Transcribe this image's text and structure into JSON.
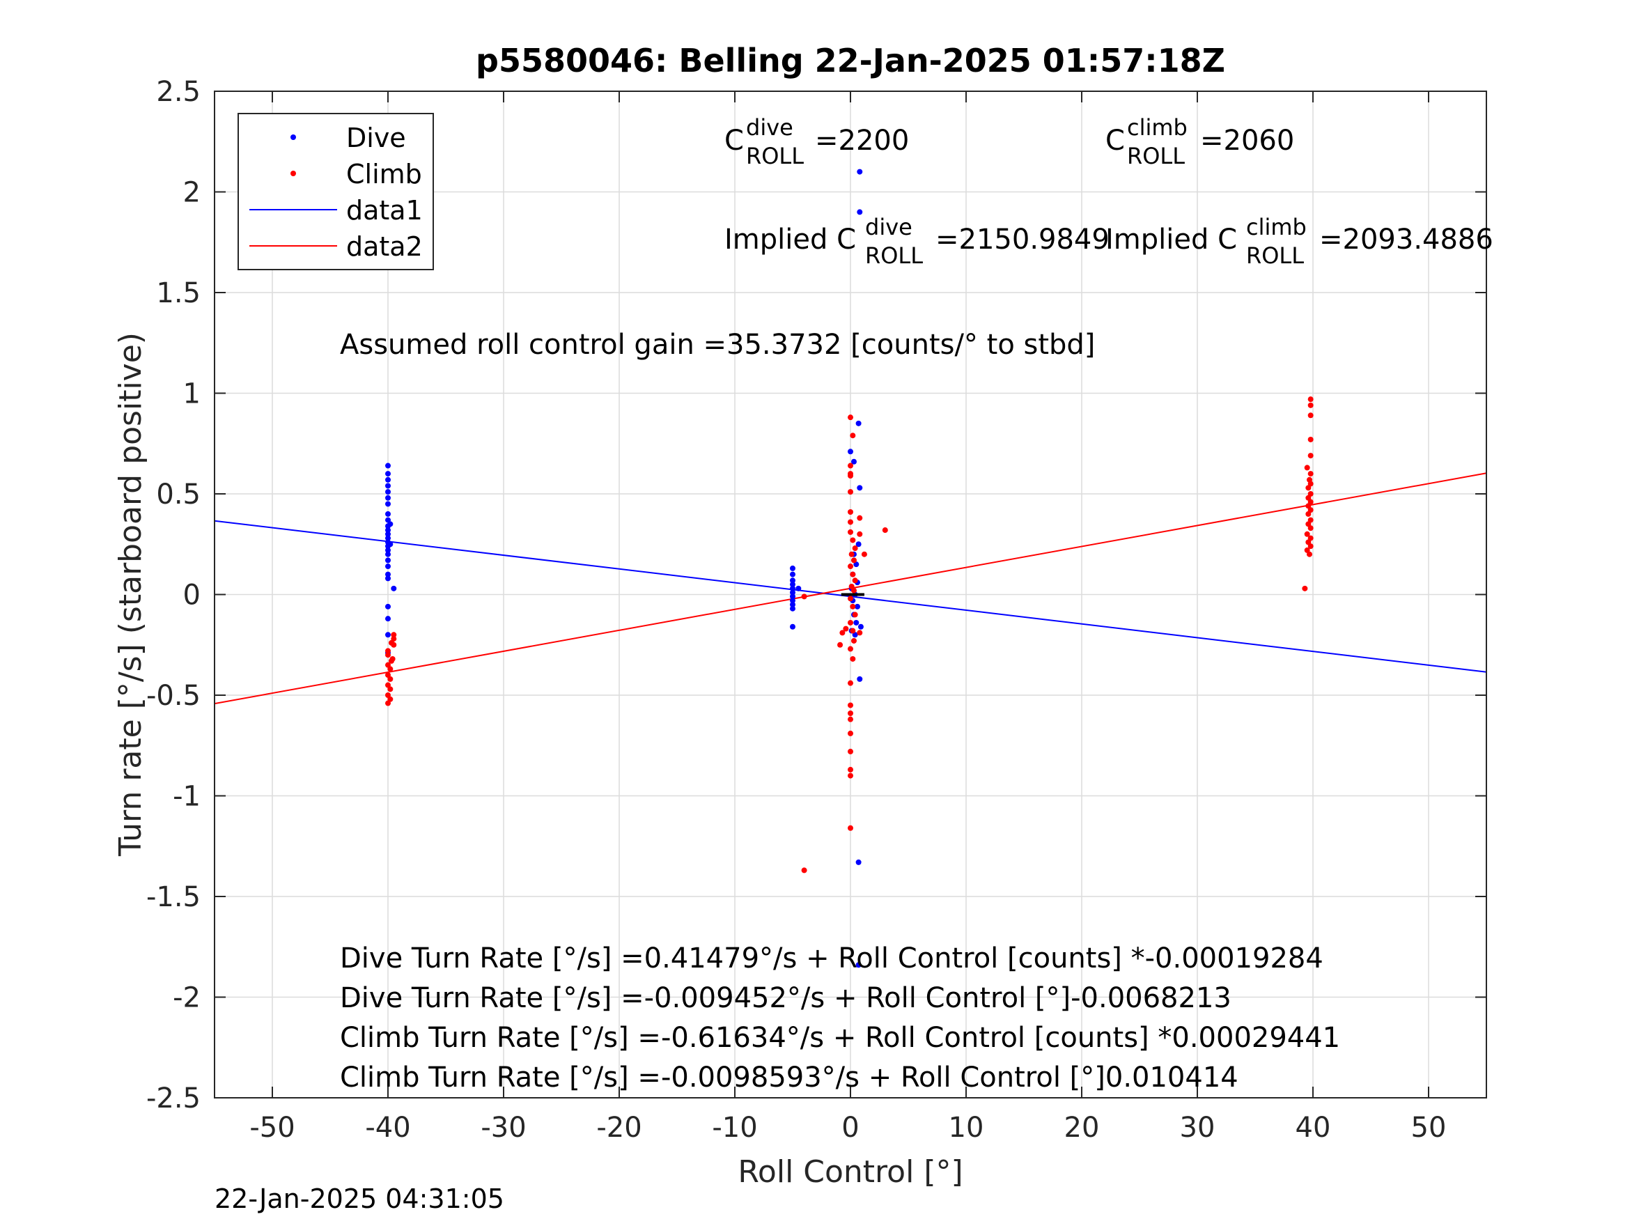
{
  "chart_data": {
    "type": "scatter",
    "title": "p5580046: Belling 22-Jan-2025 01:57:18Z",
    "xlabel": "Roll Control [°]",
    "ylabel": "Turn rate [°/s] (starboard positive)",
    "xlim": [
      -55,
      55
    ],
    "ylim": [
      -2.5,
      2.5
    ],
    "xticks": [
      -50,
      -40,
      -30,
      -20,
      -10,
      0,
      10,
      20,
      30,
      40,
      50
    ],
    "yticks": [
      -2.5,
      -2,
      -1.5,
      -1,
      -0.5,
      0,
      0.5,
      1,
      1.5,
      2,
      2.5
    ],
    "xtick_labels": [
      "-50",
      "-40",
      "-30",
      "-20",
      "-10",
      "0",
      "10",
      "20",
      "30",
      "40",
      "50"
    ],
    "ytick_labels": [
      "-2.5",
      "-2",
      "-1.5",
      "-1",
      "-0.5",
      "0",
      "0.5",
      "1",
      "1.5",
      "2",
      "2.5"
    ],
    "grid": true,
    "legend_position": "top-left",
    "legend": [
      "Dive",
      "Climb",
      "data1",
      "data2"
    ],
    "colors": {
      "dive": "#0000ff",
      "climb": "#ff0000",
      "marker": "#000000"
    },
    "series": [
      {
        "name": "Dive",
        "kind": "scatter",
        "points": [
          [
            -40,
            0.64
          ],
          [
            -40,
            0.6
          ],
          [
            -40,
            0.57
          ],
          [
            -40,
            0.54
          ],
          [
            -40,
            0.51
          ],
          [
            -40,
            0.48
          ],
          [
            -40,
            0.45
          ],
          [
            -40,
            0.4
          ],
          [
            -40,
            0.37
          ],
          [
            -40,
            0.34
          ],
          [
            -40,
            0.32
          ],
          [
            -40,
            0.3
          ],
          [
            -40,
            0.28
          ],
          [
            -40,
            0.26
          ],
          [
            -40,
            0.24
          ],
          [
            -40,
            0.22
          ],
          [
            -40,
            0.2
          ],
          [
            -40,
            0.17
          ],
          [
            -40,
            0.14
          ],
          [
            -40,
            0.1
          ],
          [
            -40,
            0.08
          ],
          [
            -39.5,
            0.03
          ],
          [
            -39.8,
            0.35
          ],
          [
            -39.8,
            0.25
          ],
          [
            -40,
            -0.06
          ],
          [
            -40,
            -0.12
          ],
          [
            -40,
            -0.2
          ],
          [
            -40,
            -0.29
          ],
          [
            -5,
            0.13
          ],
          [
            -5,
            0.1
          ],
          [
            -5,
            0.07
          ],
          [
            -5,
            0.05
          ],
          [
            -5,
            0.03
          ],
          [
            -5,
            0.01
          ],
          [
            -5,
            -0.01
          ],
          [
            -5,
            -0.03
          ],
          [
            -5,
            -0.05
          ],
          [
            -5,
            -0.07
          ],
          [
            -5,
            -0.16
          ],
          [
            -4.5,
            0.03
          ],
          [
            0.8,
            2.1
          ],
          [
            0.8,
            1.9
          ],
          [
            0.7,
            0.85
          ],
          [
            0,
            0.71
          ],
          [
            0.3,
            0.66
          ],
          [
            0.8,
            0.53
          ],
          [
            0.7,
            0.25
          ],
          [
            0.3,
            0.2
          ],
          [
            0.5,
            0.15
          ],
          [
            0.2,
            0.1
          ],
          [
            0.6,
            0.06
          ],
          [
            0.1,
            0.03
          ],
          [
            0.4,
            0.0
          ],
          [
            0.2,
            -0.03
          ],
          [
            0.6,
            -0.06
          ],
          [
            0.3,
            -0.1
          ],
          [
            0.5,
            -0.14
          ],
          [
            0.1,
            -0.18
          ],
          [
            0.4,
            -0.2
          ],
          [
            0.9,
            -0.16
          ],
          [
            0.8,
            -0.42
          ],
          [
            0.7,
            -1.33
          ],
          [
            0.7,
            -1.84
          ]
        ]
      },
      {
        "name": "Climb",
        "kind": "scatter",
        "points": [
          [
            -39.5,
            -0.2
          ],
          [
            -39.5,
            -0.22
          ],
          [
            -39.7,
            -0.24
          ],
          [
            -39.5,
            -0.25
          ],
          [
            -40,
            -0.3
          ],
          [
            -39.6,
            -0.32
          ],
          [
            -40,
            -0.35
          ],
          [
            -39.8,
            -0.37
          ],
          [
            -40,
            -0.4
          ],
          [
            -39.8,
            -0.42
          ],
          [
            -40,
            -0.45
          ],
          [
            -39.8,
            -0.47
          ],
          [
            -40,
            -0.5
          ],
          [
            -39.8,
            -0.52
          ],
          [
            -40,
            -0.54
          ],
          [
            -39.7,
            -0.33
          ],
          [
            -40,
            -0.28
          ],
          [
            0,
            0.88
          ],
          [
            0.2,
            0.79
          ],
          [
            0,
            0.64
          ],
          [
            0,
            0.6
          ],
          [
            0,
            0.59
          ],
          [
            0,
            0.51
          ],
          [
            0,
            0.41
          ],
          [
            0,
            0.36
          ],
          [
            0,
            0.31
          ],
          [
            0.2,
            0.27
          ],
          [
            0.4,
            0.23
          ],
          [
            0.1,
            0.2
          ],
          [
            0.3,
            0.17
          ],
          [
            0,
            0.14
          ],
          [
            0.2,
            0.1
          ],
          [
            0.4,
            0.07
          ],
          [
            0.1,
            0.04
          ],
          [
            0.3,
            0.02
          ],
          [
            0,
            -0.02
          ],
          [
            0.2,
            -0.06
          ],
          [
            0.4,
            -0.1
          ],
          [
            0,
            -0.14
          ],
          [
            0.2,
            -0.18
          ],
          [
            -0.4,
            -0.17
          ],
          [
            -0.7,
            -0.19
          ],
          [
            -0.9,
            -0.25
          ],
          [
            0.3,
            -0.23
          ],
          [
            0,
            -0.27
          ],
          [
            0.2,
            -0.32
          ],
          [
            0,
            -0.44
          ],
          [
            0,
            -0.55
          ],
          [
            0,
            -0.59
          ],
          [
            0,
            -0.62
          ],
          [
            0,
            -0.69
          ],
          [
            0,
            -0.78
          ],
          [
            0,
            -0.87
          ],
          [
            0,
            -0.9
          ],
          [
            0,
            -1.16
          ],
          [
            -4,
            -1.37
          ],
          [
            -4,
            -0.01
          ],
          [
            3,
            0.32
          ],
          [
            1.2,
            0.2
          ],
          [
            0.8,
            0.38
          ],
          [
            0.8,
            0.3
          ],
          [
            0.8,
            -0.19
          ],
          [
            39.8,
            0.97
          ],
          [
            39.8,
            0.94
          ],
          [
            39.8,
            0.89
          ],
          [
            39.8,
            0.77
          ],
          [
            39.8,
            0.69
          ],
          [
            39.5,
            0.63
          ],
          [
            39.8,
            0.6
          ],
          [
            39.7,
            0.57
          ],
          [
            39.8,
            0.55
          ],
          [
            39.6,
            0.53
          ],
          [
            39.8,
            0.5
          ],
          [
            39.6,
            0.48
          ],
          [
            39.8,
            0.46
          ],
          [
            39.6,
            0.44
          ],
          [
            39.8,
            0.42
          ],
          [
            39.6,
            0.4
          ],
          [
            39.8,
            0.37
          ],
          [
            39.6,
            0.35
          ],
          [
            39.8,
            0.33
          ],
          [
            39.5,
            0.3
          ],
          [
            39.8,
            0.28
          ],
          [
            39.6,
            0.26
          ],
          [
            39.8,
            0.24
          ],
          [
            39.5,
            0.22
          ],
          [
            39.7,
            0.2
          ],
          [
            39.3,
            0.03
          ]
        ]
      },
      {
        "name": "data1",
        "kind": "line",
        "points": [
          [
            -55,
            0.366
          ],
          [
            55,
            -0.385
          ]
        ]
      },
      {
        "name": "data2",
        "kind": "line",
        "points": [
          [
            -55,
            -0.542
          ],
          [
            55,
            0.603
          ]
        ]
      }
    ],
    "zero_marker": {
      "x_range": [
        -0.8,
        1.2
      ],
      "y": 0
    },
    "annotations": {
      "c_dive": {
        "base": "C",
        "sup": "dive",
        "sub": "ROLL",
        "value": "=2200"
      },
      "c_climb": {
        "base": "C",
        "sup": "climb",
        "sub": "ROLL",
        "value": "=2060"
      },
      "implied_dive": {
        "prefix": "Implied C",
        "sup": "dive",
        "sub": "ROLL",
        "value": "=2150.9849"
      },
      "implied_climb": {
        "prefix": "Implied C",
        "sup": "climb",
        "sub": "ROLL",
        "value": "=2093.4886"
      },
      "gain": "Assumed roll control gain =35.3732 [counts/° to stbd]",
      "eq_lines": [
        "Dive Turn Rate [°/s] =0.41479°/s + Roll Control [counts] *-0.00019284",
        "Dive Turn Rate [°/s] =-0.009452°/s + Roll Control [°]-0.0068213",
        "Climb Turn Rate [°/s] =-0.61634°/s + Roll Control [counts] *0.00029441",
        "Climb Turn Rate [°/s] =-0.0098593°/s + Roll Control [°]0.010414"
      ]
    }
  },
  "footer_timestamp": "22-Jan-2025 04:31:05"
}
